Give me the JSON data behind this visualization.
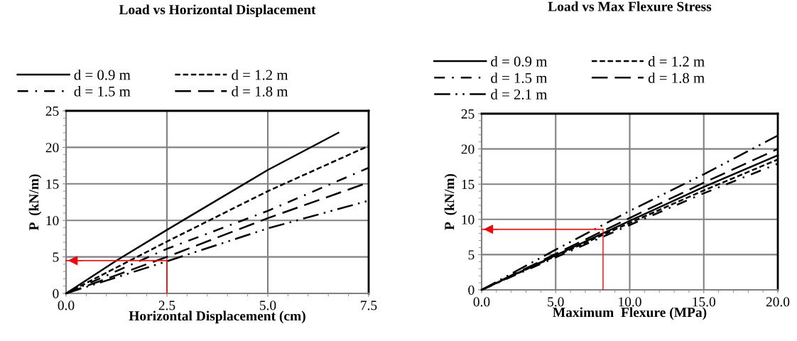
{
  "chart_data": [
    {
      "type": "line",
      "title": "Load vs Horizontal Displacement",
      "xlabel": "Horizontal Displacement (cm)",
      "ylabel": "P  (kN/m)",
      "xlim": [
        0,
        7.5
      ],
      "ylim": [
        0,
        25
      ],
      "xticks": [
        {
          "value": 0,
          "label": "0.0"
        },
        {
          "value": 2.5,
          "label": "2.5"
        },
        {
          "value": 5,
          "label": "5.0"
        },
        {
          "value": 7.5,
          "label": "7.5"
        }
      ],
      "yticks": [
        0,
        5,
        10,
        15,
        20,
        25
      ],
      "grid": true,
      "legend": "top",
      "marker": "none",
      "series": [
        {
          "name": "d = 0.9 m",
          "color": "#000000",
          "line_style": "solid",
          "x": [
            0,
            1.25,
            2.5,
            5,
            6.75
          ],
          "values": [
            0,
            4.5,
            8.7,
            16.9,
            22
          ]
        },
        {
          "name": "d = 1.2 m",
          "color": "#000000",
          "line_style": "dashed",
          "x": [
            0,
            2.5,
            5,
            7.5
          ],
          "values": [
            0,
            7.1,
            14.0,
            20.2
          ]
        },
        {
          "name": "d = 1.5 m",
          "color": "#000000",
          "line_style": "dashdot",
          "x": [
            0,
            2.5,
            5,
            7.5
          ],
          "values": [
            0,
            6.1,
            11.3,
            17.2
          ]
        },
        {
          "name": "d = 1.8 m",
          "color": "#000000",
          "line_style": "longdash",
          "x": [
            0,
            2.5,
            5,
            7.5
          ],
          "values": [
            0,
            5.0,
            10.3,
            15.2
          ]
        },
        {
          "color": "#000000",
          "line_style": "dashdotdot",
          "x": [
            0,
            2.5,
            5,
            7.5
          ],
          "values": [
            0,
            4.4,
            8.9,
            12.7
          ]
        }
      ],
      "ref_lines": [
        {
          "axis": "x",
          "value": 2.5,
          "color": "#ff0000"
        },
        {
          "axis": "y",
          "value": 4.5,
          "color": "#ff0000"
        }
      ]
    },
    {
      "type": "line",
      "title": "Load vs Max Flexure Stress",
      "xlabel": "Maximum  Flexure (MPa)",
      "ylabel": "P  (kN/m)",
      "xlim": [
        0,
        20
      ],
      "ylim": [
        0,
        25
      ],
      "xticks": [
        {
          "value": 0,
          "label": "0.0"
        },
        {
          "value": 5,
          "label": "5.0"
        },
        {
          "value": 10,
          "label": "10.0"
        },
        {
          "value": 15,
          "label": "15.0"
        },
        {
          "value": 20,
          "label": "20.0"
        }
      ],
      "yticks": [
        0,
        5,
        10,
        15,
        20,
        25
      ],
      "grid": true,
      "legend": "top",
      "marker": "none",
      "series": [
        {
          "name": "d = 0.9 m",
          "color": "#000000",
          "line_style": "solid",
          "x": [
            0,
            5,
            10,
            15,
            20
          ],
          "values": [
            0,
            4.9,
            9.8,
            14.6,
            19.1
          ]
        },
        {
          "name": "d = 1.2 m",
          "color": "#000000",
          "line_style": "dashed",
          "x": [
            0,
            5,
            10,
            15,
            20
          ],
          "values": [
            0,
            4.8,
            9.5,
            14.1,
            18.5
          ]
        },
        {
          "name": "d = 1.5 m",
          "color": "#000000",
          "line_style": "dashdot",
          "x": [
            0,
            5,
            10,
            15,
            20
          ],
          "values": [
            0,
            4.6,
            9.2,
            13.7,
            17.9
          ]
        },
        {
          "name": "d = 1.8 m",
          "color": "#000000",
          "line_style": "longdash",
          "x": [
            0,
            5,
            10,
            15,
            20
          ],
          "values": [
            0,
            5.1,
            10.2,
            15.2,
            20.0
          ]
        },
        {
          "name": "d = 2.1 m",
          "color": "#000000",
          "line_style": "dashdotdot",
          "x": [
            0,
            5,
            10,
            15,
            20
          ],
          "values": [
            0,
            5.7,
            11.2,
            16.4,
            21.9
          ]
        }
      ],
      "ref_lines": [
        {
          "axis": "x",
          "value": 8.2,
          "color": "#ff0000"
        },
        {
          "axis": "y",
          "value": 8.6,
          "color": "#ff0000"
        }
      ]
    }
  ]
}
